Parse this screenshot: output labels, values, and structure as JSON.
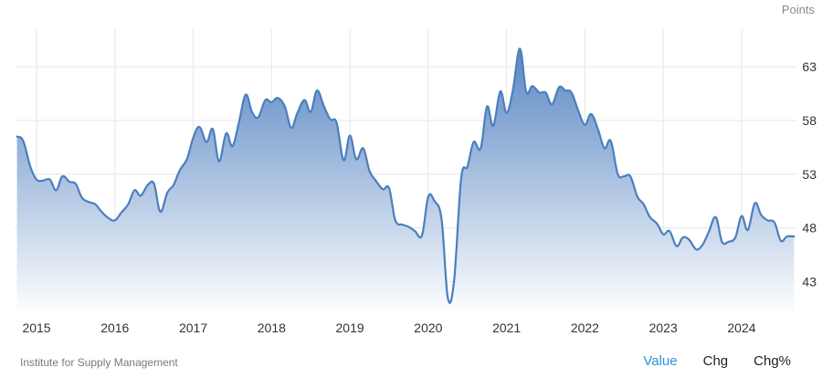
{
  "unit_label": "Points",
  "source": "Institute for Supply Management",
  "tabs": [
    {
      "label": "Value",
      "active": true
    },
    {
      "label": "Chg",
      "active": false
    },
    {
      "label": "Chg%",
      "active": false
    }
  ],
  "colors": {
    "line": "#4a7fbd",
    "fill_top": "#5a87c4",
    "fill_bottom": "#ffffff",
    "grid": "#e6e6e6",
    "active_tab": "#2f93d6"
  },
  "chart_data": {
    "type": "area",
    "title": "",
    "xlabel": "",
    "ylabel": "",
    "unit": "Points",
    "y_ticks": [
      43,
      48,
      53,
      58,
      63
    ],
    "ylim": [
      39.8,
      66.5
    ],
    "x_tick_labels": [
      "2015",
      "2016",
      "2017",
      "2018",
      "2019",
      "2020",
      "2021",
      "2022",
      "2023",
      "2024"
    ],
    "x_tick_years": [
      2015,
      2016,
      2017,
      2018,
      2019,
      2020,
      2021,
      2022,
      2023,
      2024
    ],
    "xlim": [
      2014.72,
      2024.7
    ],
    "grid": true,
    "series": [
      {
        "x": [
          2014.75,
          2014.83,
          2014.92,
          2015.0,
          2015.08,
          2015.17,
          2015.25,
          2015.33,
          2015.42,
          2015.5,
          2015.58,
          2015.67,
          2015.75,
          2015.83,
          2015.92,
          2016.0,
          2016.08,
          2016.17,
          2016.25,
          2016.33,
          2016.42,
          2016.5,
          2016.58,
          2016.67,
          2016.75,
          2016.83,
          2016.92,
          2017.0,
          2017.08,
          2017.17,
          2017.25,
          2017.33,
          2017.42,
          2017.5,
          2017.58,
          2017.67,
          2017.75,
          2017.83,
          2017.92,
          2018.0,
          2018.08,
          2018.17,
          2018.25,
          2018.33,
          2018.42,
          2018.5,
          2018.58,
          2018.67,
          2018.75,
          2018.83,
          2018.92,
          2019.0,
          2019.08,
          2019.17,
          2019.25,
          2019.33,
          2019.42,
          2019.5,
          2019.58,
          2019.67,
          2019.75,
          2019.83,
          2019.92,
          2020.0,
          2020.08,
          2020.17,
          2020.25,
          2020.33,
          2020.42,
          2020.5,
          2020.58,
          2020.67,
          2020.75,
          2020.83,
          2020.92,
          2021.0,
          2021.08,
          2021.17,
          2021.25,
          2021.33,
          2021.42,
          2021.5,
          2021.58,
          2021.67,
          2021.75,
          2021.83,
          2021.92,
          2022.0,
          2022.08,
          2022.17,
          2022.25,
          2022.33,
          2022.42,
          2022.5,
          2022.58,
          2022.67,
          2022.75,
          2022.83,
          2022.92,
          2023.0,
          2023.08,
          2023.17,
          2023.25,
          2023.33,
          2023.42,
          2023.5,
          2023.58,
          2023.67,
          2023.75,
          2023.83,
          2023.92,
          2024.0,
          2024.08,
          2024.17,
          2024.25,
          2024.33,
          2024.42,
          2024.5,
          2024.58,
          2024.67
        ],
        "values": [
          56.5,
          56.1,
          53.7,
          52.5,
          52.4,
          52.5,
          51.5,
          52.8,
          52.3,
          52.1,
          50.8,
          50.4,
          50.2,
          49.5,
          48.9,
          48.7,
          49.4,
          50.2,
          51.5,
          51.0,
          52.0,
          52.1,
          49.5,
          51.3,
          52.0,
          53.4,
          54.4,
          56.4,
          57.4,
          56.0,
          57.2,
          54.2,
          56.8,
          55.6,
          57.7,
          60.4,
          58.8,
          58.3,
          59.9,
          59.7,
          60.1,
          59.3,
          57.3,
          58.7,
          59.9,
          58.8,
          60.8,
          59.3,
          58.1,
          57.8,
          54.3,
          56.6,
          54.4,
          55.4,
          53.3,
          52.4,
          51.6,
          51.7,
          48.7,
          48.3,
          48.1,
          47.7,
          47.3,
          50.9,
          50.5,
          48.8,
          41.5,
          43.1,
          52.6,
          53.7,
          56.0,
          55.4,
          59.3,
          57.5,
          60.7,
          58.7,
          60.8,
          64.7,
          60.7,
          61.2,
          60.6,
          60.6,
          59.5,
          61.1,
          60.8,
          60.6,
          58.8,
          57.6,
          58.6,
          57.1,
          55.4,
          56.1,
          53.0,
          52.8,
          52.8,
          50.9,
          50.2,
          49.0,
          48.4,
          47.4,
          47.7,
          46.3,
          47.1,
          46.9,
          46.0,
          46.4,
          47.6,
          49.0,
          46.7,
          46.7,
          47.1,
          49.1,
          47.8,
          50.3,
          49.2,
          48.7,
          48.5,
          46.8,
          47.2,
          47.2
        ]
      }
    ]
  }
}
